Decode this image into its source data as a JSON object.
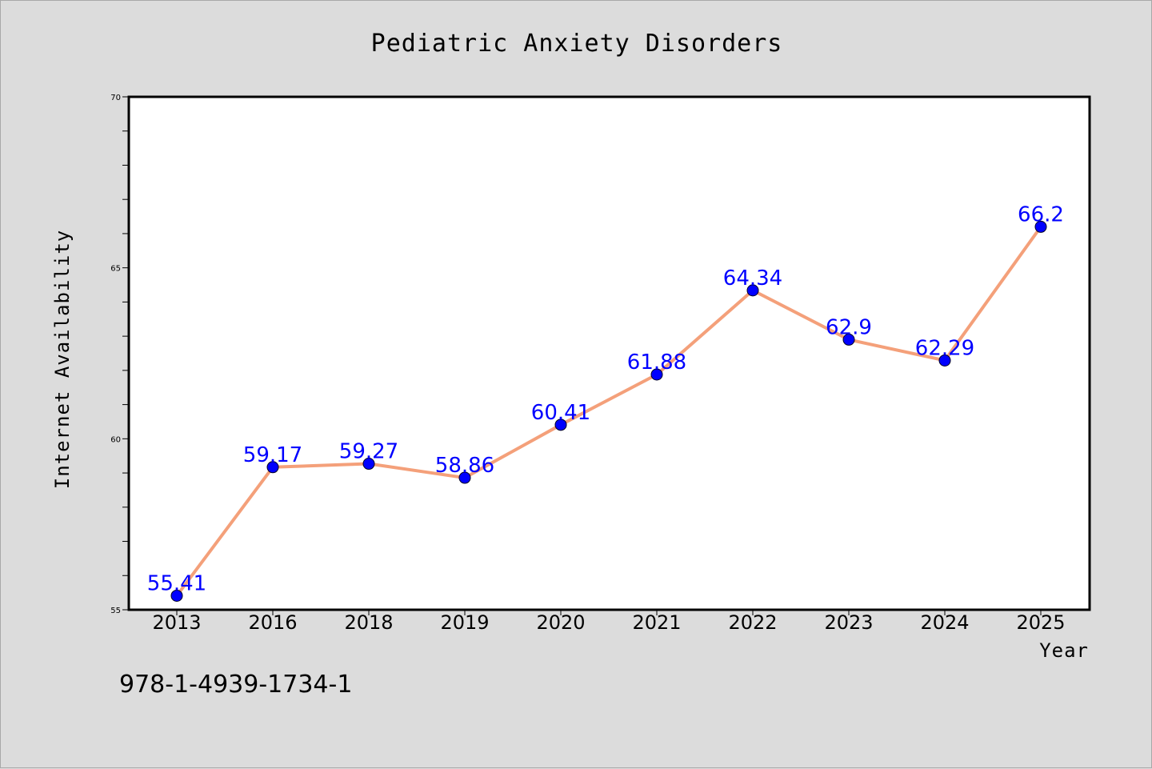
{
  "chart_data": {
    "type": "line",
    "title": "Pediatric Anxiety Disorders",
    "xlabel": "Year",
    "ylabel": "Internet Availability",
    "categories": [
      "2013",
      "2016",
      "2018",
      "2019",
      "2020",
      "2021",
      "2022",
      "2023",
      "2024",
      "2025"
    ],
    "series": [
      {
        "values": [
          55.41,
          59.17,
          59.27,
          58.86,
          60.41,
          61.88,
          64.34,
          62.9,
          62.29,
          66.2
        ],
        "data_labels": [
          "55.41",
          "59.17",
          "59.27",
          "58.86",
          "60.41",
          "61.88",
          "64.34",
          "62.9",
          "62.29",
          "66.2"
        ],
        "line_color": "#f4a07a",
        "marker_color": "#0000ff"
      }
    ],
    "ylim": [
      55,
      70
    ],
    "y_ticks": [
      "55",
      "60",
      "65",
      "70"
    ],
    "y_minor_step": 1,
    "grid": false,
    "legend": "none"
  },
  "footer_text": "978-1-4939-1734-1",
  "colors": {
    "background": "#dcdcdc",
    "plot_background": "#ffffff",
    "axis": "#000000",
    "data_label": "#0000ff"
  }
}
